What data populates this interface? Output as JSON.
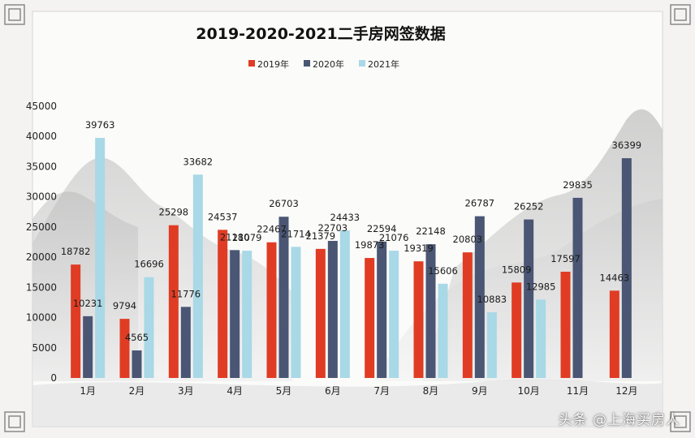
{
  "watermark": "头条 @上海买房人",
  "chart_data": {
    "type": "bar",
    "title": "2019-2020-2021二手房网签数据",
    "categories": [
      "1月",
      "2月",
      "3月",
      "4月",
      "5月",
      "6月",
      "7月",
      "8月",
      "9月",
      "10月",
      "11月",
      "12月"
    ],
    "series": [
      {
        "name": "2019年",
        "color": "#e03c24",
        "values": [
          18782,
          9794,
          25298,
          24537,
          22467,
          21379,
          19873,
          19319,
          20803,
          15809,
          17597,
          14463
        ]
      },
      {
        "name": "2020年",
        "color": "#4a5673",
        "values": [
          10231,
          4565,
          11776,
          21180,
          26703,
          22703,
          22594,
          22148,
          26787,
          26252,
          29835,
          36399
        ]
      },
      {
        "name": "2021年",
        "color": "#a9d8e6",
        "values": [
          39763,
          16696,
          33682,
          21079,
          21714,
          24433,
          21076,
          15606,
          10883,
          12985,
          null,
          null
        ]
      }
    ],
    "data_labels": [
      [
        "18782",
        "9794",
        "25298",
        "24537",
        "22467",
        "21379",
        "19873",
        "19319",
        "20803",
        "15809",
        "17597",
        "14463"
      ],
      [
        "10231",
        "4565",
        "11776",
        "21180",
        "26703",
        "22703",
        "22594",
        "22148",
        "26787",
        "26252",
        "29835",
        "36399"
      ],
      [
        "39763",
        "16696",
        "33682",
        "21079",
        "21714",
        "24433",
        "21076",
        "15606",
        "10883",
        "12985",
        "",
        ""
      ]
    ],
    "ylim": [
      0,
      45000
    ],
    "yticks": [
      "0",
      "5000",
      "10000",
      "15000",
      "20000",
      "25000",
      "30000",
      "35000",
      "40000",
      "45000"
    ],
    "grid": false,
    "legend_position": "top-center"
  }
}
